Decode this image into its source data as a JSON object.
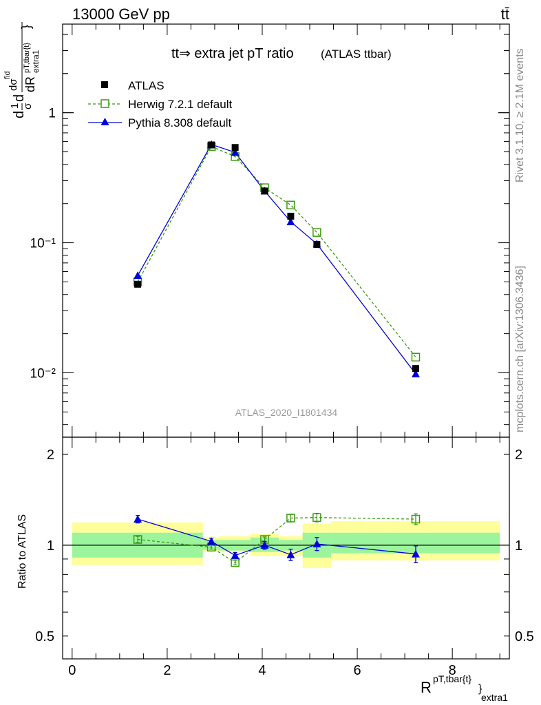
{
  "header": {
    "left": "13000 GeV pp",
    "right": "tt̄"
  },
  "side_labels": {
    "rivet": "Rivet 3.1.10, ≥ 2.1M events",
    "mcplots": "mcplots.cern.ch [arXiv:1306.3436]"
  },
  "watermark": "ATLAS_2020_I1801434",
  "chart_data": [
    {
      "type": "line",
      "title": "tt⇒ extra jet pT ratio",
      "subtitle": "(ATLAS ttbar)",
      "ylabel": "1/σ dσ/dR^{pT,tbar{t}}_{extra1}",
      "yscale": "log",
      "ylim": [
        0.0032,
        4.8
      ],
      "xlim": [
        -0.2,
        9.2
      ],
      "y_ticks": [
        {
          "v": 1,
          "label": "1"
        },
        {
          "v": 0.1,
          "label": "10⁻¹"
        },
        {
          "v": 0.01,
          "label": "10⁻²"
        }
      ],
      "legend_position": "top-left",
      "series": [
        {
          "name": "ATLAS",
          "color": "#000000",
          "marker": "filled-square",
          "x": [
            1.38,
            2.93,
            3.43,
            4.05,
            4.6,
            5.15,
            7.23
          ],
          "y": [
            0.048,
            0.565,
            0.54,
            0.25,
            0.16,
            0.097,
            0.0108
          ]
        },
        {
          "name": "Herwig 7.2.1 default",
          "color": "#3a9a10",
          "marker": "open-square",
          "line": "dashed",
          "x": [
            1.38,
            2.93,
            3.43,
            4.05,
            4.6,
            5.15,
            7.23
          ],
          "y": [
            0.05,
            0.55,
            0.46,
            0.265,
            0.195,
            0.12,
            0.0132
          ]
        },
        {
          "name": "Pythia 8.308 default",
          "color": "#0000dd",
          "marker": "filled-triangle",
          "line": "solid",
          "x": [
            1.38,
            2.93,
            3.43,
            4.05,
            4.6,
            5.15,
            7.23
          ],
          "y": [
            0.056,
            0.57,
            0.495,
            0.25,
            0.145,
            0.098,
            0.0098
          ]
        }
      ]
    },
    {
      "type": "line",
      "ylabel": "Ratio to ATLAS",
      "xlabel": "R^{pT,tbar{t}}_{extra1}",
      "xlim": [
        -0.2,
        9.2
      ],
      "ylim": [
        0.42,
        2.28
      ],
      "x_ticks": [
        0,
        2,
        4,
        6,
        8
      ],
      "y_ticks": [
        {
          "v": 0.5,
          "label": "0.5"
        },
        {
          "v": 1,
          "label": "1"
        },
        {
          "v": 2,
          "label": "2"
        }
      ],
      "bands": {
        "bin_edges": [
          0,
          2.75,
          3.1,
          3.75,
          4.35,
          4.85,
          5.45,
          9.0
        ],
        "inner": [
          [
            0.91,
            1.1
          ],
          [
            0.965,
            1.04
          ],
          [
            0.96,
            1.04
          ],
          [
            0.95,
            1.06
          ],
          [
            0.96,
            1.04
          ],
          [
            0.91,
            1.1
          ],
          [
            0.94,
            1.1
          ]
        ],
        "outer": [
          [
            0.86,
            1.19
          ],
          [
            0.955,
            1.065
          ],
          [
            0.95,
            1.07
          ],
          [
            0.92,
            1.09
          ],
          [
            0.92,
            1.07
          ],
          [
            0.84,
            1.18
          ],
          [
            0.89,
            1.2
          ]
        ],
        "inner_color": "#9cf59c",
        "outer_color": "#fefe9a"
      },
      "series": [
        {
          "name": "Herwig 7.2.1 default",
          "color": "#3a9a10",
          "marker": "open-square",
          "line": "dashed",
          "x": [
            1.38,
            2.93,
            3.43,
            4.05,
            4.6,
            5.15,
            7.23
          ],
          "y": [
            1.045,
            0.985,
            0.875,
            1.045,
            1.23,
            1.235,
            1.22
          ],
          "err": [
            0.025,
            0.015,
            0.015,
            0.02,
            0.035,
            0.04,
            0.05
          ]
        },
        {
          "name": "Pythia 8.308 default",
          "color": "#0000dd",
          "marker": "filled-triangle",
          "line": "solid",
          "x": [
            1.38,
            2.93,
            3.43,
            4.05,
            4.6,
            5.15,
            7.23
          ],
          "y": [
            1.22,
            1.03,
            0.925,
            1.0,
            0.93,
            1.01,
            0.935
          ],
          "err": [
            0.035,
            0.025,
            0.02,
            0.03,
            0.04,
            0.05,
            0.06
          ]
        }
      ]
    }
  ]
}
